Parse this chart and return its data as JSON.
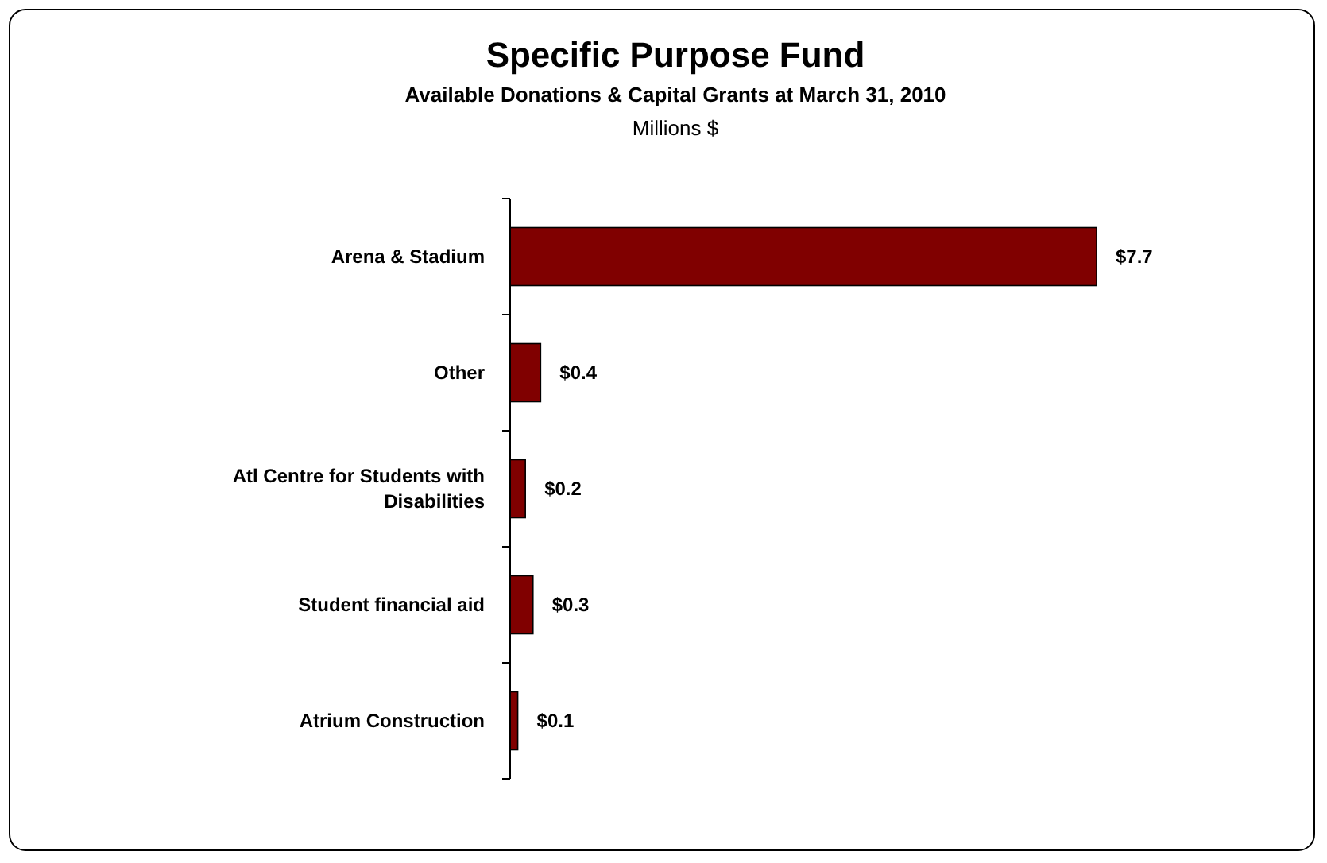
{
  "chart_data": {
    "type": "bar",
    "orientation": "horizontal",
    "title": "Specific Purpose Fund",
    "subtitle": "Available Donations & Capital Grants at March 31, 2010",
    "annotations": [
      "Millions $"
    ],
    "categories": [
      "Arena & Stadium",
      "Other",
      "Atl Centre for Students with Disabilities",
      "Student financial aid",
      "Atrium Construction"
    ],
    "values": [
      7.7,
      0.4,
      0.2,
      0.3,
      0.1
    ],
    "value_labels": [
      "$7.7",
      "$0.4",
      "$0.2",
      "$0.3",
      "$0.1"
    ],
    "color": "#800000"
  }
}
